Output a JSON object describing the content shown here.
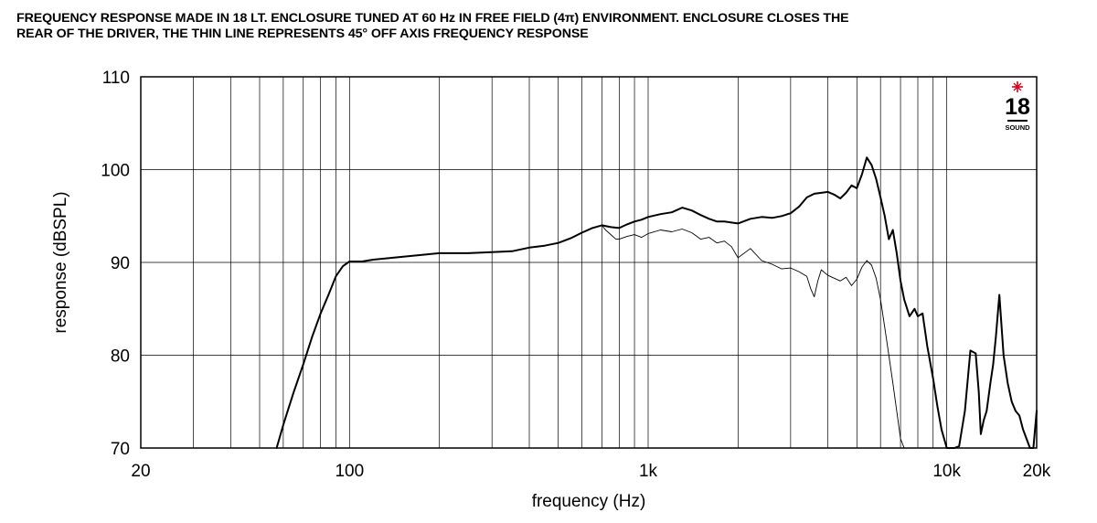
{
  "title_lines": [
    "FREQUENCY RESPONSE MADE IN 18 LT. ENCLOSURE TUNED AT 60 Hz IN FREE FIELD (4π) ENVIRONMENT. ENCLOSURE CLOSES THE",
    "REAR OF THE DRIVER, THE THIN LINE REPRESENTS 45° OFF AXIS FREQUENCY RESPONSE"
  ],
  "logo": {
    "text_main": "18",
    "text_sub": "SOUND",
    "icon": "star-icon",
    "accent_color": "#d6001c"
  },
  "chart_data": {
    "type": "line",
    "xlabel": "frequency (Hz)",
    "ylabel": "response (dBSPL)",
    "xscale": "log",
    "xlim": [
      20,
      20000
    ],
    "ylim": [
      70,
      110
    ],
    "x_ticks": [
      20,
      100,
      1000,
      10000,
      20000
    ],
    "x_tick_labels": [
      "20",
      "100",
      "1k",
      "10k",
      "20k"
    ],
    "y_ticks": [
      70,
      80,
      90,
      100,
      110
    ],
    "y_tick_labels": [
      "70",
      "80",
      "90",
      "100",
      "110"
    ],
    "grid": true,
    "series": [
      {
        "style": "thick",
        "x": [
          57,
          60,
          65,
          70,
          75,
          80,
          85,
          90,
          95,
          100,
          110,
          120,
          150,
          200,
          250,
          300,
          350,
          400,
          450,
          500,
          550,
          600,
          650,
          700,
          750,
          800,
          850,
          900,
          950,
          1000,
          1100,
          1200,
          1300,
          1400,
          1500,
          1600,
          1700,
          1800,
          1900,
          2000,
          2200,
          2400,
          2600,
          2800,
          3000,
          3200,
          3400,
          3600,
          3800,
          4000,
          4200,
          4400,
          4600,
          4800,
          5000,
          5200,
          5400,
          5600,
          5800,
          6000,
          6200,
          6400,
          6600,
          6800,
          7000,
          7200,
          7500,
          7800,
          8000,
          8300,
          8600,
          9000,
          9300,
          9600,
          9800,
          10000,
          10300,
          10600,
          11000,
          11500,
          12000,
          12500,
          12800,
          13000,
          13300,
          13600,
          14000,
          14300,
          14600,
          15000,
          15500,
          16000,
          16500,
          17000,
          17500,
          18000,
          18500,
          19000,
          19500,
          20000
        ],
        "y": [
          70,
          72.5,
          76,
          79,
          82,
          84.5,
          86.5,
          88.5,
          89.6,
          90.1,
          90.1,
          90.3,
          90.6,
          91,
          91,
          91.1,
          91.2,
          91.6,
          91.8,
          92.1,
          92.6,
          93.2,
          93.7,
          94,
          93.8,
          93.7,
          94.1,
          94.4,
          94.6,
          94.9,
          95.2,
          95.4,
          95.9,
          95.6,
          95.1,
          94.7,
          94.4,
          94.4,
          94.3,
          94.2,
          94.7,
          94.9,
          94.8,
          95,
          95.3,
          96,
          97,
          97.4,
          97.5,
          97.6,
          97.3,
          96.9,
          97.5,
          98.3,
          98,
          99.5,
          101.3,
          100.5,
          99,
          97,
          95,
          92.5,
          93.5,
          91,
          88,
          86,
          84.2,
          85,
          84.2,
          84.5,
          81,
          77.5,
          74.5,
          72,
          71,
          70,
          70,
          70,
          70.2,
          74,
          80.5,
          80.2,
          76,
          71.5,
          73,
          74,
          77,
          79,
          82,
          86.5,
          80,
          77,
          75,
          74,
          73.5,
          72,
          71,
          70,
          70,
          74
        ],
        "color": "#000000"
      },
      {
        "style": "thin",
        "x": [
          700,
          720,
          750,
          780,
          800,
          850,
          900,
          950,
          1000,
          1100,
          1200,
          1300,
          1400,
          1500,
          1600,
          1700,
          1800,
          1900,
          2000,
          2200,
          2400,
          2600,
          2800,
          3000,
          3200,
          3400,
          3500,
          3600,
          3700,
          3800,
          4000,
          4200,
          4400,
          4600,
          4800,
          5000,
          5200,
          5400,
          5600,
          5800,
          6000,
          6200,
          6400,
          6600,
          6800,
          7000,
          7200
        ],
        "y": [
          94,
          93.5,
          93,
          92.5,
          92.5,
          92.8,
          93,
          92.7,
          93.1,
          93.5,
          93.3,
          93.6,
          93.2,
          92.5,
          92.7,
          92.1,
          92.3,
          91.7,
          90.5,
          91.5,
          90.2,
          89.8,
          89.3,
          89.4,
          89,
          88.5,
          87.2,
          86.3,
          88,
          89.2,
          88.6,
          88.3,
          88,
          88.4,
          87.5,
          88.2,
          89.5,
          90.2,
          89.7,
          88.3,
          86,
          83,
          80,
          77,
          74,
          71,
          70
        ],
        "color": "#000000"
      }
    ]
  }
}
